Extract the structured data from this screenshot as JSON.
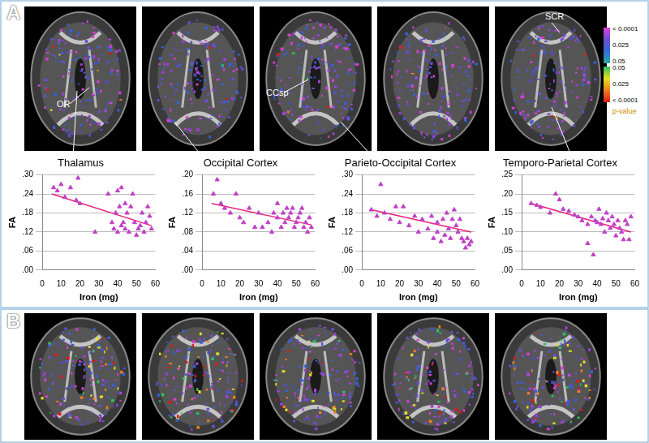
{
  "figure": {
    "panel_labels": [
      "A",
      "B"
    ],
    "annotations": [
      "OR",
      "CCsp",
      "SCR"
    ],
    "colorbar": {
      "title": "p-value",
      "top": {
        "labels": [
          "< 0.0001",
          "0.025",
          "0.05"
        ],
        "colors": [
          "#e040e0",
          "#6a4fd0",
          "#2f6fd8",
          "#2aa8a0"
        ]
      },
      "bottom": {
        "labels": [
          "0.05",
          "0.025",
          "< 0.0001"
        ],
        "colors": [
          "#2ec060",
          "#e8e020",
          "#f08020",
          "#e01818"
        ]
      }
    }
  },
  "chart_data": [
    {
      "type": "scatter",
      "title": "Thalamus",
      "x_label": "Iron (mg)",
      "y_label": "FA",
      "grid": "y",
      "xlim": [
        0,
        60
      ],
      "xticks": [
        0,
        10,
        20,
        30,
        40,
        50,
        60
      ],
      "ylim": [
        0,
        0.3
      ],
      "yticks": [
        {
          "value": 0,
          "label": ".00"
        },
        {
          "value": 0.06,
          "label": ".06"
        },
        {
          "value": 0.12,
          "label": ".12"
        },
        {
          "value": 0.18,
          "label": ".18"
        },
        {
          "value": 0.24,
          "label": ".24"
        },
        {
          "value": 0.3,
          "label": ".30"
        }
      ],
      "series": [
        {
          "type": "scatter",
          "marker": "triangle",
          "color": "#c040c8",
          "x": [
            6,
            8,
            10,
            12,
            15,
            18,
            19,
            20,
            28,
            35,
            37,
            38,
            39,
            40,
            40,
            41,
            42,
            42,
            43,
            44,
            44,
            45,
            46,
            47,
            48,
            49,
            50,
            51,
            52,
            53,
            54,
            55,
            56,
            57,
            58
          ],
          "values": [
            0.26,
            0.25,
            0.27,
            0.23,
            0.26,
            0.22,
            0.29,
            0.21,
            0.12,
            0.24,
            0.15,
            0.13,
            0.18,
            0.25,
            0.12,
            0.2,
            0.14,
            0.26,
            0.15,
            0.21,
            0.13,
            0.18,
            0.12,
            0.2,
            0.24,
            0.15,
            0.11,
            0.13,
            0.14,
            0.18,
            0.12,
            0.15,
            0.2,
            0.17,
            0.13
          ]
        },
        {
          "type": "line",
          "color": "#e8207a",
          "x": [
            5,
            58
          ],
          "values": [
            0.24,
            0.14
          ]
        }
      ]
    },
    {
      "type": "scatter",
      "title": "Occipital Cortex",
      "x_label": "Iron (mg)",
      "y_label": "FA",
      "grid": "y",
      "xlim": [
        0,
        60
      ],
      "xticks": [
        0,
        10,
        20,
        30,
        40,
        50,
        60
      ],
      "ylim": [
        0,
        0.2
      ],
      "yticks": [
        {
          "value": 0,
          "label": ".00"
        },
        {
          "value": 0.04,
          "label": ".04"
        },
        {
          "value": 0.08,
          "label": ".08"
        },
        {
          "value": 0.12,
          "label": ".12"
        },
        {
          "value": 0.16,
          "label": ".16"
        },
        {
          "value": 0.2,
          "label": ".20"
        }
      ],
      "series": [
        {
          "type": "scatter",
          "marker": "triangle",
          "color": "#c040c8",
          "x": [
            6,
            8,
            10,
            12,
            15,
            18,
            20,
            22,
            25,
            28,
            30,
            32,
            35,
            37,
            38,
            40,
            40,
            42,
            43,
            44,
            45,
            46,
            47,
            48,
            49,
            50,
            51,
            52,
            53,
            54,
            55,
            56,
            57,
            58
          ],
          "values": [
            0.16,
            0.19,
            0.14,
            0.13,
            0.12,
            0.16,
            0.11,
            0.1,
            0.13,
            0.09,
            0.12,
            0.09,
            0.1,
            0.08,
            0.12,
            0.14,
            0.11,
            0.09,
            0.12,
            0.1,
            0.13,
            0.11,
            0.12,
            0.13,
            0.09,
            0.1,
            0.11,
            0.12,
            0.13,
            0.09,
            0.1,
            0.08,
            0.11,
            0.09
          ]
        },
        {
          "type": "line",
          "color": "#e8207a",
          "x": [
            5,
            58
          ],
          "values": [
            0.14,
            0.095
          ]
        }
      ]
    },
    {
      "type": "scatter",
      "title": "Parieto-Occipital Cortex",
      "x_label": "Iron (mg)",
      "y_label": "FA",
      "grid": "y",
      "xlim": [
        0,
        60
      ],
      "xticks": [
        0,
        10,
        20,
        30,
        40,
        50,
        60
      ],
      "ylim": [
        0,
        0.3
      ],
      "yticks": [
        {
          "value": 0,
          "label": ".00"
        },
        {
          "value": 0.06,
          "label": ".06"
        },
        {
          "value": 0.12,
          "label": ".12"
        },
        {
          "value": 0.18,
          "label": ".18"
        },
        {
          "value": 0.24,
          "label": ".24"
        },
        {
          "value": 0.3,
          "label": ".30"
        }
      ],
      "series": [
        {
          "type": "scatter",
          "marker": "triangle",
          "color": "#c040c8",
          "x": [
            5,
            8,
            10,
            12,
            15,
            18,
            20,
            22,
            25,
            28,
            30,
            32,
            35,
            37,
            38,
            40,
            40,
            42,
            43,
            44,
            45,
            46,
            47,
            48,
            49,
            50,
            51,
            52,
            53,
            54,
            55,
            56,
            57,
            58
          ],
          "values": [
            0.19,
            0.17,
            0.27,
            0.18,
            0.16,
            0.2,
            0.15,
            0.2,
            0.14,
            0.17,
            0.12,
            0.16,
            0.13,
            0.17,
            0.1,
            0.12,
            0.15,
            0.09,
            0.16,
            0.11,
            0.18,
            0.13,
            0.1,
            0.16,
            0.19,
            0.14,
            0.12,
            0.16,
            0.1,
            0.09,
            0.07,
            0.1,
            0.08,
            0.09
          ]
        },
        {
          "type": "line",
          "color": "#e8207a",
          "x": [
            5,
            58
          ],
          "values": [
            0.19,
            0.12
          ]
        }
      ]
    },
    {
      "type": "scatter",
      "title": "Temporo-Parietal Cortex",
      "x_label": "Iron (mg)",
      "y_label": "FA",
      "grid": "y",
      "xlim": [
        0,
        60
      ],
      "xticks": [
        0,
        10,
        20,
        30,
        40,
        50,
        60
      ],
      "ylim": [
        0,
        0.25
      ],
      "yticks": [
        {
          "value": 0,
          "label": ".00"
        },
        {
          "value": 0.05,
          "label": ".05"
        },
        {
          "value": 0.1,
          "label": ".10"
        },
        {
          "value": 0.15,
          "label": ".15"
        },
        {
          "value": 0.2,
          "label": ".20"
        },
        {
          "value": 0.25,
          "label": ".25"
        }
      ],
      "series": [
        {
          "type": "scatter",
          "marker": "triangle",
          "color": "#c040c8",
          "x": [
            5,
            8,
            10,
            15,
            18,
            20,
            22,
            25,
            28,
            30,
            32,
            35,
            35,
            37,
            38,
            39,
            40,
            41,
            42,
            43,
            44,
            45,
            46,
            47,
            48,
            49,
            50,
            51,
            52,
            53,
            54,
            55,
            56,
            57,
            58
          ],
          "values": [
            0.175,
            0.17,
            0.165,
            0.15,
            0.2,
            0.185,
            0.16,
            0.155,
            0.145,
            0.14,
            0.13,
            0.12,
            0.07,
            0.14,
            0.04,
            0.13,
            0.125,
            0.16,
            0.12,
            0.135,
            0.1,
            0.15,
            0.13,
            0.11,
            0.14,
            0.12,
            0.09,
            0.13,
            0.11,
            0.1,
            0.08,
            0.13,
            0.12,
            0.08,
            0.14
          ]
        },
        {
          "type": "line",
          "color": "#e8207a",
          "x": [
            5,
            58
          ],
          "values": [
            0.175,
            0.1
          ]
        }
      ]
    }
  ]
}
